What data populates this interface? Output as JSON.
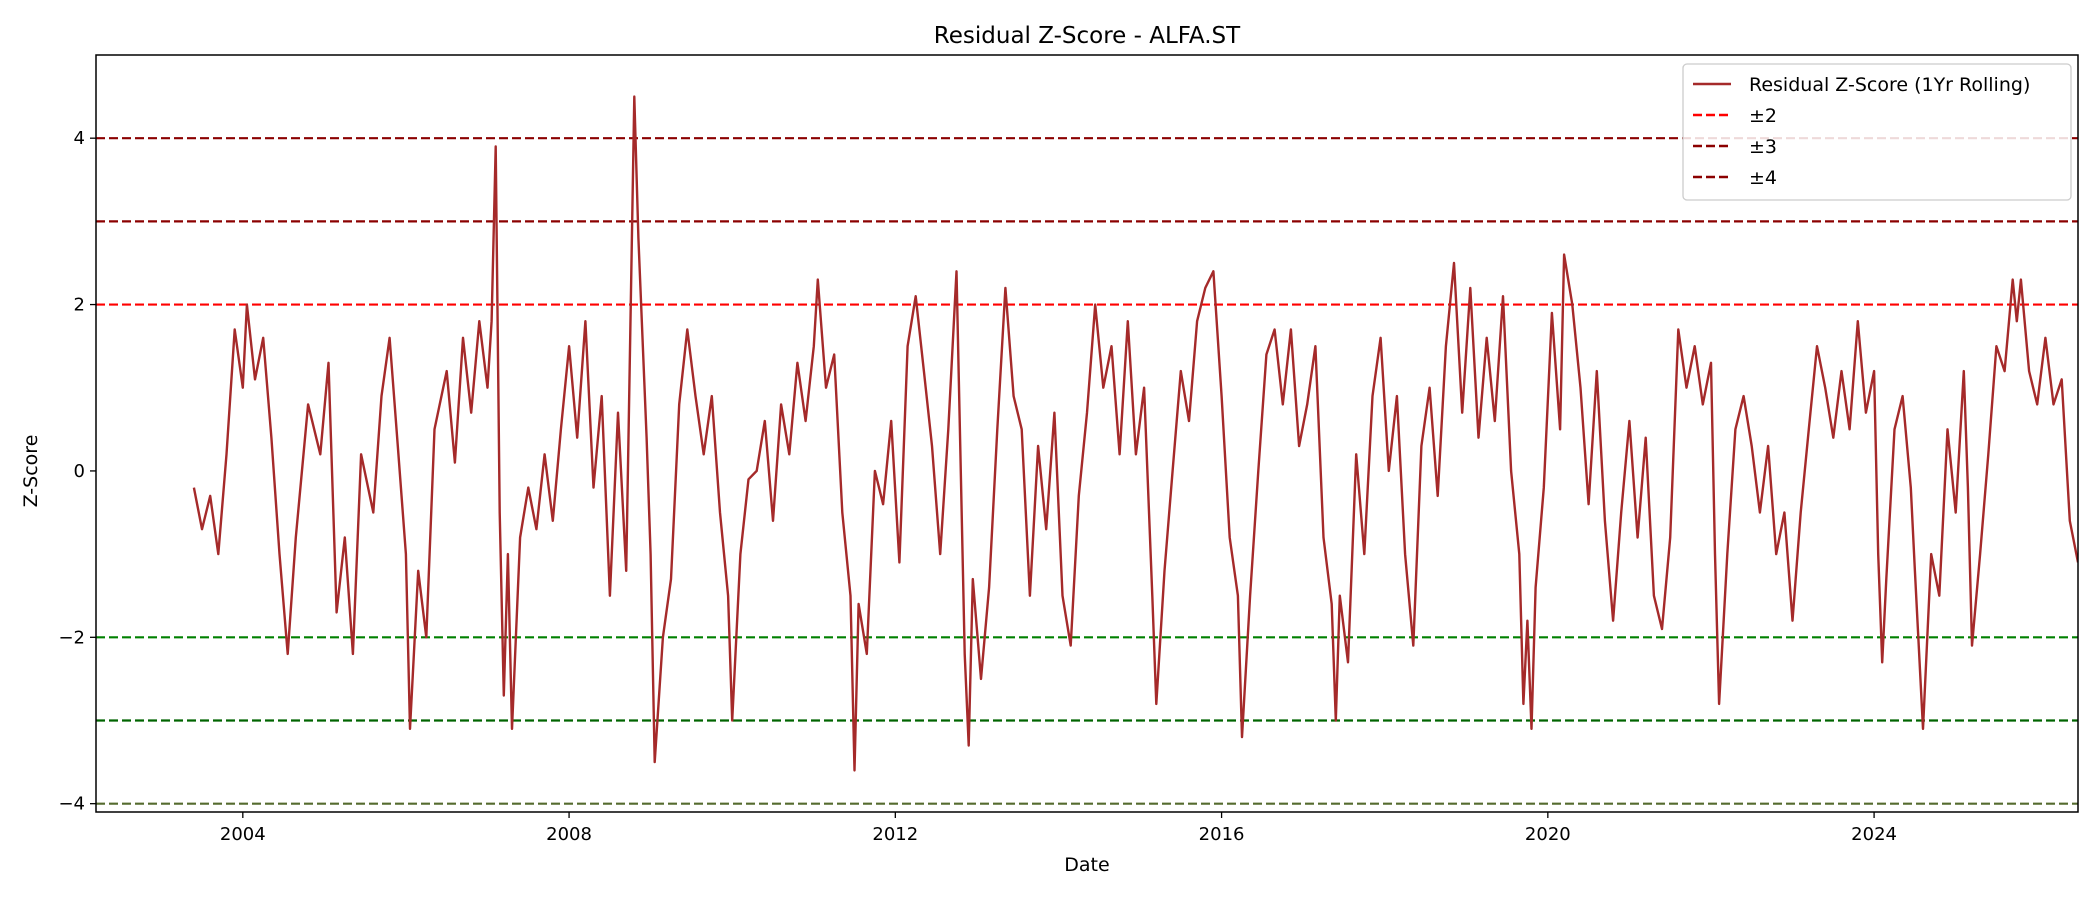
{
  "chart_data": {
    "type": "line",
    "title": "Residual Z-Score - ALFA.ST",
    "xlabel": "Date",
    "ylabel": "Z-Score",
    "xlim": [
      2002.2,
      2026.5
    ],
    "ylim": [
      -4.1,
      5.0
    ],
    "x_ticks": [
      2004,
      2008,
      2012,
      2016,
      2020,
      2024
    ],
    "x_tick_labels": [
      "2004",
      "2008",
      "2012",
      "2016",
      "2020",
      "2024"
    ],
    "y_ticks": [
      -4,
      -2,
      0,
      2,
      4
    ],
    "y_tick_labels": [
      "−4",
      "−2",
      "0",
      "2",
      "4"
    ],
    "legend_position": "top-right",
    "series": [
      {
        "name": "Residual Z-Score (1Yr Rolling)",
        "color": "#a52a2a",
        "points": [
          [
            2003.4,
            -0.2
          ],
          [
            2003.5,
            -0.7
          ],
          [
            2003.6,
            -0.3
          ],
          [
            2003.7,
            -1.0
          ],
          [
            2003.8,
            0.2
          ],
          [
            2003.9,
            1.7
          ],
          [
            2004.0,
            1.0
          ],
          [
            2004.05,
            2.0
          ],
          [
            2004.15,
            1.1
          ],
          [
            2004.25,
            1.6
          ],
          [
            2004.35,
            0.4
          ],
          [
            2004.45,
            -1.0
          ],
          [
            2004.55,
            -2.2
          ],
          [
            2004.65,
            -0.8
          ],
          [
            2004.8,
            0.8
          ],
          [
            2004.95,
            0.2
          ],
          [
            2005.05,
            1.3
          ],
          [
            2005.15,
            -1.7
          ],
          [
            2005.25,
            -0.8
          ],
          [
            2005.35,
            -2.2
          ],
          [
            2005.45,
            0.2
          ],
          [
            2005.6,
            -0.5
          ],
          [
            2005.7,
            0.9
          ],
          [
            2005.8,
            1.6
          ],
          [
            2005.9,
            0.3
          ],
          [
            2006.0,
            -1.0
          ],
          [
            2006.05,
            -3.1
          ],
          [
            2006.15,
            -1.2
          ],
          [
            2006.25,
            -2.0
          ],
          [
            2006.35,
            0.5
          ],
          [
            2006.5,
            1.2
          ],
          [
            2006.6,
            0.1
          ],
          [
            2006.7,
            1.6
          ],
          [
            2006.8,
            0.7
          ],
          [
            2006.9,
            1.8
          ],
          [
            2007.0,
            1.0
          ],
          [
            2007.05,
            1.8
          ],
          [
            2007.1,
            3.9
          ],
          [
            2007.15,
            -0.5
          ],
          [
            2007.2,
            -2.7
          ],
          [
            2007.25,
            -1.0
          ],
          [
            2007.3,
            -3.1
          ],
          [
            2007.4,
            -0.8
          ],
          [
            2007.5,
            -0.2
          ],
          [
            2007.6,
            -0.7
          ],
          [
            2007.7,
            0.2
          ],
          [
            2007.8,
            -0.6
          ],
          [
            2007.9,
            0.5
          ],
          [
            2008.0,
            1.5
          ],
          [
            2008.1,
            0.4
          ],
          [
            2008.2,
            1.8
          ],
          [
            2008.3,
            -0.2
          ],
          [
            2008.4,
            0.9
          ],
          [
            2008.5,
            -1.5
          ],
          [
            2008.6,
            0.7
          ],
          [
            2008.7,
            -1.2
          ],
          [
            2008.75,
            1.6
          ],
          [
            2008.8,
            4.5
          ],
          [
            2008.85,
            2.8
          ],
          [
            2008.95,
            0.4
          ],
          [
            2009.0,
            -1.0
          ],
          [
            2009.05,
            -3.5
          ],
          [
            2009.15,
            -2.0
          ],
          [
            2009.25,
            -1.3
          ],
          [
            2009.35,
            0.8
          ],
          [
            2009.45,
            1.7
          ],
          [
            2009.55,
            0.9
          ],
          [
            2009.65,
            0.2
          ],
          [
            2009.75,
            0.9
          ],
          [
            2009.85,
            -0.5
          ],
          [
            2009.95,
            -1.5
          ],
          [
            2010.0,
            -3.0
          ],
          [
            2010.1,
            -1.0
          ],
          [
            2010.2,
            -0.1
          ],
          [
            2010.3,
            0.0
          ],
          [
            2010.4,
            0.6
          ],
          [
            2010.5,
            -0.6
          ],
          [
            2010.6,
            0.8
          ],
          [
            2010.7,
            0.2
          ],
          [
            2010.8,
            1.3
          ],
          [
            2010.9,
            0.6
          ],
          [
            2011.0,
            1.5
          ],
          [
            2011.05,
            2.3
          ],
          [
            2011.15,
            1.0
          ],
          [
            2011.25,
            1.4
          ],
          [
            2011.35,
            -0.5
          ],
          [
            2011.45,
            -1.5
          ],
          [
            2011.5,
            -3.6
          ],
          [
            2011.55,
            -1.6
          ],
          [
            2011.65,
            -2.2
          ],
          [
            2011.75,
            0.0
          ],
          [
            2011.85,
            -0.4
          ],
          [
            2011.95,
            0.6
          ],
          [
            2012.05,
            -1.1
          ],
          [
            2012.15,
            1.5
          ],
          [
            2012.25,
            2.1
          ],
          [
            2012.35,
            1.2
          ],
          [
            2012.45,
            0.3
          ],
          [
            2012.55,
            -1.0
          ],
          [
            2012.65,
            0.5
          ],
          [
            2012.75,
            2.4
          ],
          [
            2012.85,
            -2.2
          ],
          [
            2012.9,
            -3.3
          ],
          [
            2012.95,
            -1.3
          ],
          [
            2013.05,
            -2.5
          ],
          [
            2013.15,
            -1.4
          ],
          [
            2013.25,
            0.5
          ],
          [
            2013.35,
            2.2
          ],
          [
            2013.45,
            0.9
          ],
          [
            2013.55,
            0.5
          ],
          [
            2013.65,
            -1.5
          ],
          [
            2013.75,
            0.3
          ],
          [
            2013.85,
            -0.7
          ],
          [
            2013.95,
            0.7
          ],
          [
            2014.05,
            -1.5
          ],
          [
            2014.15,
            -2.1
          ],
          [
            2014.25,
            -0.3
          ],
          [
            2014.35,
            0.7
          ],
          [
            2014.45,
            2.0
          ],
          [
            2014.55,
            1.0
          ],
          [
            2014.65,
            1.5
          ],
          [
            2014.75,
            0.2
          ],
          [
            2014.85,
            1.8
          ],
          [
            2014.95,
            0.2
          ],
          [
            2015.05,
            1.0
          ],
          [
            2015.15,
            -1.5
          ],
          [
            2015.2,
            -2.8
          ],
          [
            2015.3,
            -1.2
          ],
          [
            2015.4,
            0.0
          ],
          [
            2015.5,
            1.2
          ],
          [
            2015.6,
            0.6
          ],
          [
            2015.7,
            1.8
          ],
          [
            2015.8,
            2.2
          ],
          [
            2015.9,
            2.4
          ],
          [
            2016.0,
            0.9
          ],
          [
            2016.1,
            -0.8
          ],
          [
            2016.2,
            -1.5
          ],
          [
            2016.25,
            -3.2
          ],
          [
            2016.35,
            -1.5
          ],
          [
            2016.45,
            0.0
          ],
          [
            2016.55,
            1.4
          ],
          [
            2016.65,
            1.7
          ],
          [
            2016.75,
            0.8
          ],
          [
            2016.85,
            1.7
          ],
          [
            2016.95,
            0.3
          ],
          [
            2017.05,
            0.8
          ],
          [
            2017.15,
            1.5
          ],
          [
            2017.25,
            -0.8
          ],
          [
            2017.35,
            -1.6
          ],
          [
            2017.4,
            -3.0
          ],
          [
            2017.45,
            -1.5
          ],
          [
            2017.55,
            -2.3
          ],
          [
            2017.65,
            0.2
          ],
          [
            2017.75,
            -1.0
          ],
          [
            2017.85,
            0.9
          ],
          [
            2017.95,
            1.6
          ],
          [
            2018.05,
            0.0
          ],
          [
            2018.15,
            0.9
          ],
          [
            2018.25,
            -1.0
          ],
          [
            2018.35,
            -2.1
          ],
          [
            2018.45,
            0.3
          ],
          [
            2018.55,
            1.0
          ],
          [
            2018.65,
            -0.3
          ],
          [
            2018.75,
            1.5
          ],
          [
            2018.85,
            2.5
          ],
          [
            2018.95,
            0.7
          ],
          [
            2019.05,
            2.2
          ],
          [
            2019.15,
            0.4
          ],
          [
            2019.25,
            1.6
          ],
          [
            2019.35,
            0.6
          ],
          [
            2019.45,
            2.1
          ],
          [
            2019.55,
            0.0
          ],
          [
            2019.65,
            -1.0
          ],
          [
            2019.7,
            -2.8
          ],
          [
            2019.75,
            -1.8
          ],
          [
            2019.8,
            -3.1
          ],
          [
            2019.85,
            -1.4
          ],
          [
            2019.95,
            -0.2
          ],
          [
            2020.05,
            1.9
          ],
          [
            2020.15,
            0.5
          ],
          [
            2020.2,
            2.6
          ],
          [
            2020.3,
            2.0
          ],
          [
            2020.4,
            1.0
          ],
          [
            2020.5,
            -0.4
          ],
          [
            2020.6,
            1.2
          ],
          [
            2020.7,
            -0.6
          ],
          [
            2020.8,
            -1.8
          ],
          [
            2020.9,
            -0.5
          ],
          [
            2021.0,
            0.6
          ],
          [
            2021.1,
            -0.8
          ],
          [
            2021.2,
            0.4
          ],
          [
            2021.3,
            -1.5
          ],
          [
            2021.4,
            -1.9
          ],
          [
            2021.5,
            -0.8
          ],
          [
            2021.6,
            1.7
          ],
          [
            2021.7,
            1.0
          ],
          [
            2021.8,
            1.5
          ],
          [
            2021.9,
            0.8
          ],
          [
            2022.0,
            1.3
          ],
          [
            2022.05,
            -1.0
          ],
          [
            2022.1,
            -2.8
          ],
          [
            2022.2,
            -1.0
          ],
          [
            2022.3,
            0.5
          ],
          [
            2022.4,
            0.9
          ],
          [
            2022.5,
            0.3
          ],
          [
            2022.6,
            -0.5
          ],
          [
            2022.7,
            0.3
          ],
          [
            2022.8,
            -1.0
          ],
          [
            2022.9,
            -0.5
          ],
          [
            2023.0,
            -1.8
          ],
          [
            2023.1,
            -0.5
          ],
          [
            2023.2,
            0.5
          ],
          [
            2023.3,
            1.5
          ],
          [
            2023.4,
            1.0
          ],
          [
            2023.5,
            0.4
          ],
          [
            2023.6,
            1.2
          ],
          [
            2023.7,
            0.5
          ],
          [
            2023.8,
            1.8
          ],
          [
            2023.9,
            0.7
          ],
          [
            2024.0,
            1.2
          ],
          [
            2024.05,
            -1.0
          ],
          [
            2024.1,
            -2.3
          ],
          [
            2024.15,
            -1.3
          ],
          [
            2024.25,
            0.5
          ],
          [
            2024.35,
            0.9
          ],
          [
            2024.45,
            -0.2
          ],
          [
            2024.5,
            -1.2
          ],
          [
            2024.6,
            -3.1
          ],
          [
            2024.7,
            -1.0
          ],
          [
            2024.8,
            -1.5
          ],
          [
            2024.9,
            0.5
          ],
          [
            2025.0,
            -0.5
          ],
          [
            2025.1,
            1.2
          ],
          [
            2025.15,
            -0.2
          ],
          [
            2025.2,
            -2.1
          ],
          [
            2025.3,
            -1.0
          ],
          [
            2025.4,
            0.2
          ],
          [
            2025.5,
            1.5
          ],
          [
            2025.6,
            1.2
          ],
          [
            2025.7,
            2.3
          ],
          [
            2025.75,
            1.8
          ],
          [
            2025.8,
            2.3
          ],
          [
            2025.9,
            1.2
          ],
          [
            2026.0,
            0.8
          ],
          [
            2026.1,
            1.6
          ],
          [
            2026.2,
            0.8
          ],
          [
            2026.3,
            1.1
          ],
          [
            2026.4,
            -0.6
          ],
          [
            2026.5,
            -1.1
          ]
        ]
      }
    ],
    "reference_lines": [
      {
        "name": "±2",
        "color": "#ff0000",
        "y": 2
      },
      {
        "name": "±3",
        "color": "#8b0000",
        "y": 3
      },
      {
        "name": "±4",
        "color": "#8b0000",
        "y": 4
      },
      {
        "color": "#008000",
        "y": -2
      },
      {
        "color": "#006400",
        "y": -3
      },
      {
        "color": "#556b2f",
        "y": -4
      }
    ],
    "legend": {
      "entries": [
        {
          "label": "Residual Z-Score (1Yr Rolling)",
          "color": "#a52a2a",
          "style": "solid"
        },
        {
          "label": "±2",
          "color": "#ff0000",
          "style": "dashed"
        },
        {
          "label": "±3",
          "color": "#8b0000",
          "style": "dashed"
        },
        {
          "label": "±4",
          "color": "#8b0000",
          "style": "dashed"
        }
      ]
    }
  }
}
